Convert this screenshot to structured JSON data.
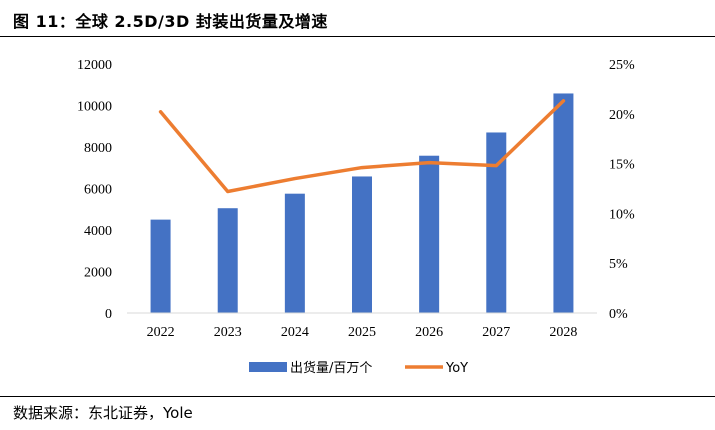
{
  "header": {
    "title": "图 11：全球 2.5D/3D 封装出货量及增速"
  },
  "footer": {
    "source": "数据来源：东北证券，Yole"
  },
  "chart_data": {
    "type": "bar+line",
    "categories": [
      "2022",
      "2023",
      "2024",
      "2025",
      "2026",
      "2027",
      "2028"
    ],
    "series": [
      {
        "name": "出货量/百万个",
        "type": "bar",
        "axis": "left",
        "color": "#4472C4",
        "values": [
          4500,
          5050,
          5750,
          6580,
          7580,
          8700,
          10580
        ]
      },
      {
        "name": "YoY",
        "type": "line",
        "axis": "right",
        "color": "#ED7D31",
        "values": [
          0.202,
          0.122,
          0.135,
          0.146,
          0.151,
          0.148,
          0.213
        ]
      }
    ],
    "y_left": {
      "min": 0,
      "max": 12000,
      "ticks": [
        "0",
        "2000",
        "4000",
        "6000",
        "8000",
        "10000",
        "12000"
      ]
    },
    "y_right": {
      "min": 0,
      "max": 0.25,
      "ticks": [
        "0%",
        "5%",
        "10%",
        "15%",
        "20%",
        "25%"
      ]
    },
    "legend": {
      "position": "bottom",
      "labels": [
        "出货量/百万个",
        "YoY"
      ]
    },
    "grid": false
  }
}
